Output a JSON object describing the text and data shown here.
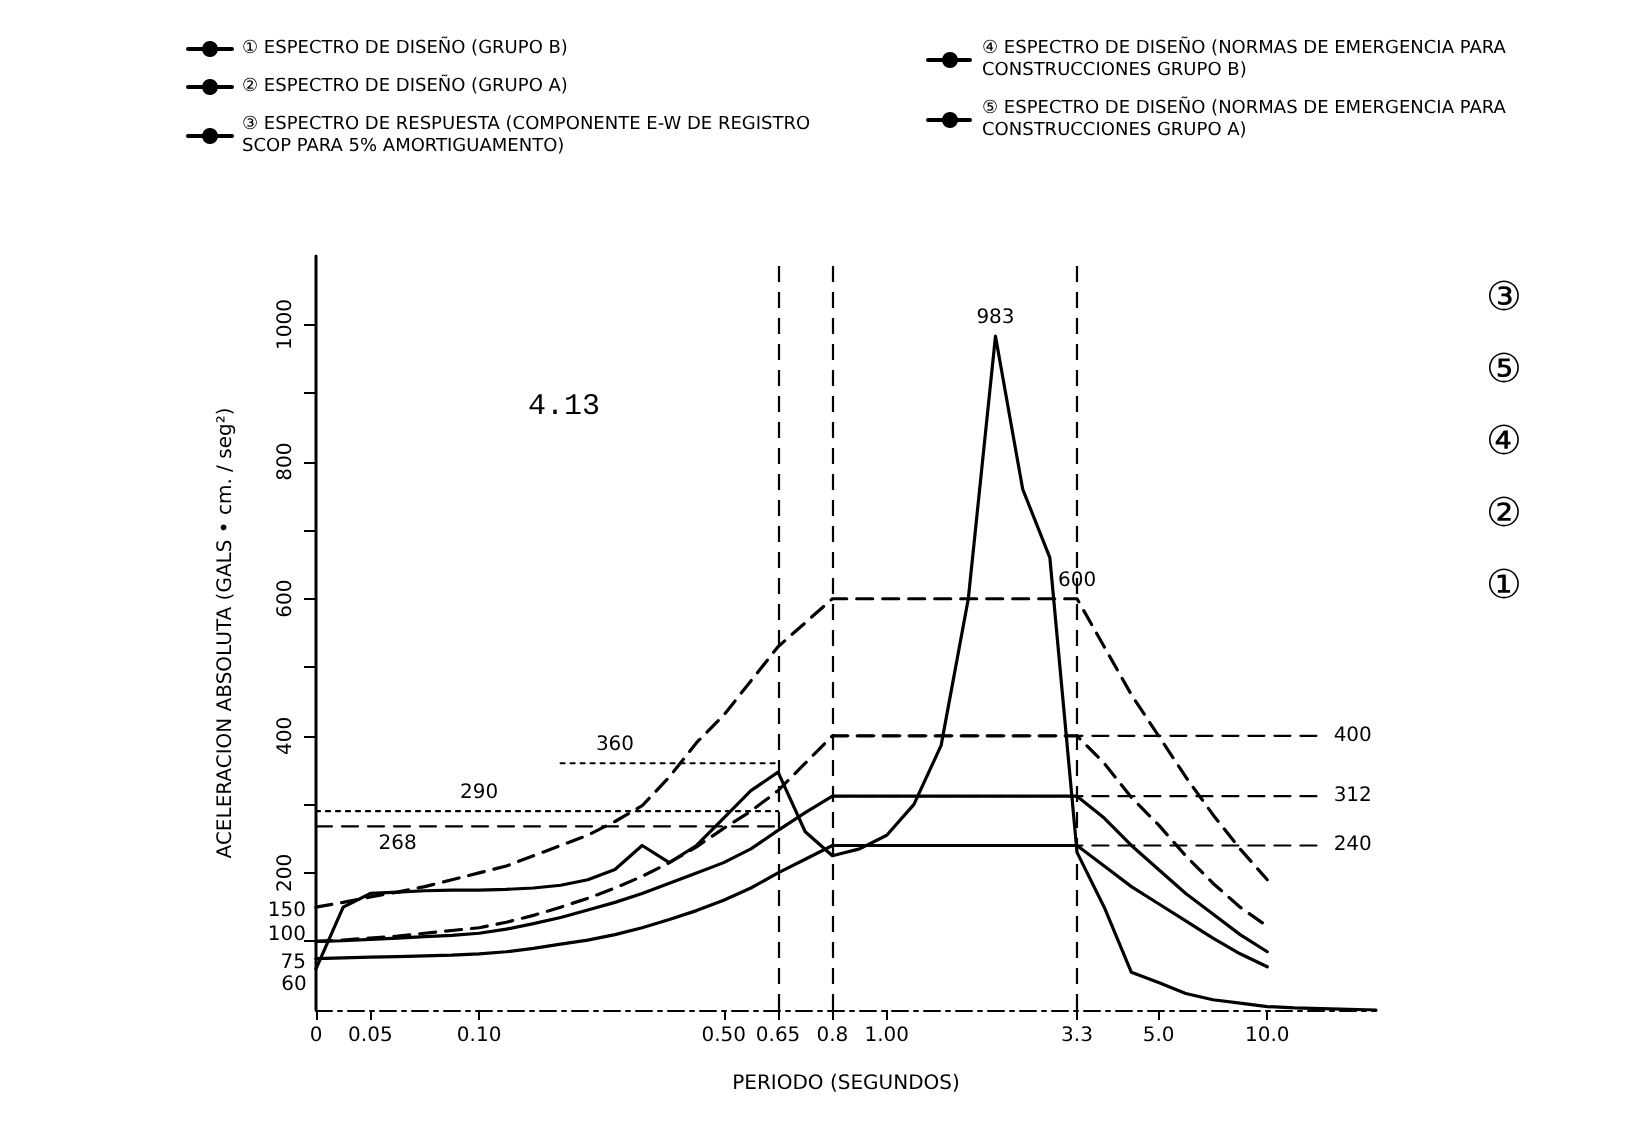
{
  "chart_data": {
    "type": "line",
    "xlabel": "PERIODO (SEGUNDOS)",
    "ylabel": "ACELERACION ABSOLUTA (GALS • cm. / seg²)",
    "categories": [
      "0",
      null,
      "0.05",
      null,
      null,
      null,
      "0.10",
      null,
      null,
      null,
      null,
      null,
      null,
      null,
      null,
      "0.50",
      null,
      "0.65",
      null,
      "0.8",
      null,
      "1.00",
      null,
      null,
      null,
      null,
      null,
      null,
      "3.3",
      null,
      null,
      "5.0",
      null,
      null,
      null,
      "10.0",
      null,
      null,
      null,
      null
    ],
    "ylim": [
      0,
      1100
    ],
    "yticks": [
      {
        "value": 100,
        "label": null
      },
      200,
      {
        "value": 300,
        "label": null
      },
      400,
      {
        "value": 500,
        "label": null
      },
      600,
      {
        "value": 700,
        "label": null
      },
      800,
      {
        "value": 900,
        "label": null
      },
      1000
    ],
    "grid": false,
    "legend": "top",
    "marker": "none",
    "ref_lines": [
      {
        "axis": "x",
        "value": "0.65",
        "line_style": "dashed",
        "color": "#000000"
      },
      {
        "axis": "x",
        "value": "0.8",
        "line_style": "dashed",
        "color": "#000000"
      },
      {
        "axis": "x",
        "value": "3.3",
        "line_style": "dashed",
        "color": "#000000"
      }
    ],
    "series": [
      {
        "name": "① ESPECTRO DE DISEÑO (GRUPO B)",
        "color": "#000000",
        "line_style": "solid",
        "values": [
          75,
          76,
          77,
          78,
          79,
          80,
          82,
          85,
          90,
          96,
          102,
          110,
          120,
          132,
          145,
          160,
          178,
          200,
          220,
          240,
          240,
          240,
          240,
          240,
          240,
          240,
          240,
          240,
          240,
          210,
          180,
          155,
          130,
          105,
          82,
          63,
          null,
          null,
          null,
          null
        ],
        "value_labels": [
          "75",
          null,
          null,
          null,
          null,
          null,
          null,
          null,
          null,
          null,
          null,
          null,
          null,
          null,
          null,
          null,
          null,
          null,
          null,
          null,
          null,
          null,
          null,
          null,
          null,
          null,
          null,
          null,
          null,
          null,
          null,
          null,
          null,
          null,
          null,
          null,
          null,
          null,
          null,
          null
        ]
      },
      {
        "name": "② ESPECTRO DE DISEÑO (GRUPO A)",
        "color": "#000000",
        "line_style": "solid",
        "values": [
          100,
          101,
          103,
          105,
          107,
          109,
          112,
          118,
          126,
          135,
          146,
          157,
          170,
          185,
          200,
          215,
          235,
          262,
          288,
          312,
          312,
          312,
          312,
          312,
          312,
          312,
          312,
          312,
          312,
          280,
          240,
          205,
          170,
          140,
          110,
          85,
          null,
          null,
          null,
          null
        ]
      },
      {
        "name": "③ ESPECTRO DE RESPUESTA (COMPONENTE E-W DE REGISTRO SCOP PARA 5% AMORTIGUAMENTO)",
        "color": "#000000",
        "line_style": "solid",
        "values": [
          60,
          150,
          170,
          172,
          174,
          175,
          175,
          176,
          178,
          182,
          190,
          205,
          240,
          215,
          240,
          280,
          320,
          347,
          260,
          225,
          235,
          255,
          300,
          386,
          600,
          983,
          760,
          660,
          230,
          150,
          55,
          40,
          24,
          15,
          10,
          5,
          3,
          2,
          1,
          0
        ],
        "value_labels": [
          "60",
          null,
          null,
          null,
          null,
          null,
          null,
          null,
          null,
          null,
          null,
          null,
          null,
          null,
          null,
          null,
          null,
          null,
          null,
          null,
          null,
          null,
          null,
          null,
          null,
          "983",
          null,
          null,
          null,
          null,
          null,
          null,
          null,
          null,
          null,
          null,
          null,
          null,
          null,
          null
        ]
      },
      {
        "name": "④ ESPECTRO DE DISEÑO (NORMAS DE EMERGENCIA PARA CONSTRUCCIONES GRUPO B)",
        "color": "#000000",
        "line_style": "dashed",
        "values": [
          100,
          102,
          105,
          108,
          112,
          116,
          120,
          128,
          138,
          150,
          163,
          178,
          195,
          215,
          238,
          265,
          290,
          320,
          360,
          400,
          400,
          400,
          400,
          400,
          400,
          400,
          400,
          400,
          400,
          360,
          310,
          270,
          225,
          185,
          150,
          122,
          null,
          null,
          null,
          null
        ],
        "value_labels": [
          "100",
          null,
          null,
          null,
          null,
          null,
          null,
          null,
          null,
          null,
          null,
          null,
          null,
          null,
          null,
          null,
          null,
          null,
          null,
          null,
          null,
          null,
          null,
          null,
          null,
          null,
          null,
          null,
          null,
          null,
          null,
          null,
          null,
          null,
          null,
          null,
          null,
          null,
          null,
          null
        ]
      },
      {
        "name": "⑤ ESPECTRO DE DISEÑO (NORMAS DE EMERGENCIA PARA CONSTRUCCIONES GRUPO A)",
        "color": "#000000",
        "line_style": "dashed",
        "values": [
          150,
          157,
          165,
          172,
          180,
          190,
          200,
          210,
          225,
          240,
          255,
          275,
          298,
          340,
          390,
          430,
          480,
          530,
          565,
          600,
          600,
          600,
          600,
          600,
          600,
          600,
          600,
          600,
          600,
          530,
          460,
          400,
          340,
          285,
          235,
          190,
          null,
          null,
          null,
          null
        ],
        "value_labels": [
          "150",
          null,
          null,
          null,
          null,
          null,
          null,
          null,
          null,
          null,
          null,
          null,
          null,
          null,
          null,
          null,
          null,
          null,
          null,
          null,
          null,
          null,
          null,
          null,
          null,
          null,
          null,
          null,
          "600",
          null,
          null,
          null,
          null,
          null,
          null,
          null,
          null,
          null,
          null,
          null
        ]
      },
      {
        "color": "#000000",
        "line_style": "dashed",
        "values": [
          268,
          268,
          268,
          268,
          268,
          268,
          268,
          268,
          268,
          268,
          268,
          268,
          268,
          268,
          268,
          268,
          268,
          268,
          null,
          null,
          null,
          null,
          null,
          null,
          null,
          null,
          null,
          null,
          null,
          null,
          null,
          null,
          null,
          null,
          null,
          null,
          null,
          null,
          null,
          null
        ],
        "value_labels": [
          null,
          null,
          null,
          "268",
          null,
          null,
          null,
          null,
          null,
          null,
          null,
          null,
          null,
          null,
          null,
          null,
          null,
          null,
          null,
          null,
          null,
          null,
          null,
          null,
          null,
          null,
          null,
          null,
          null,
          null,
          null,
          null,
          null,
          null,
          null,
          null,
          null,
          null,
          null,
          null
        ]
      },
      {
        "color": "#000000",
        "line_style": "dotted",
        "values": [
          290,
          290,
          290,
          290,
          290,
          290,
          290,
          290,
          290,
          290,
          290,
          290,
          290,
          290,
          290,
          290,
          290,
          290,
          null,
          null,
          null,
          null,
          null,
          null,
          null,
          null,
          null,
          null,
          null,
          null,
          null,
          null,
          null,
          null,
          null,
          null,
          null,
          null,
          null,
          null
        ],
        "value_labels": [
          null,
          null,
          null,
          null,
          null,
          null,
          "290",
          null,
          null,
          null,
          null,
          null,
          null,
          null,
          null,
          null,
          null,
          null,
          null,
          null,
          null,
          null,
          null,
          null,
          null,
          null,
          null,
          null,
          null,
          null,
          null,
          null,
          null,
          null,
          null,
          null,
          null,
          null,
          null,
          null
        ]
      },
      {
        "color": "#000000",
        "line_style": "dotted",
        "values": [
          null,
          null,
          null,
          null,
          null,
          null,
          null,
          null,
          null,
          360,
          360,
          360,
          360,
          360,
          360,
          360,
          360,
          360,
          null,
          null,
          null,
          null,
          null,
          null,
          null,
          null,
          null,
          null,
          null,
          null,
          null,
          null,
          null,
          null,
          null,
          null,
          null,
          null,
          null,
          null
        ],
        "value_labels": [
          null,
          null,
          null,
          null,
          null,
          null,
          null,
          null,
          null,
          null,
          null,
          "360",
          null,
          null,
          null,
          null,
          null,
          null,
          null,
          null,
          null,
          null,
          null,
          null,
          null,
          null,
          null,
          null,
          null,
          null,
          null,
          null,
          null,
          null,
          null,
          null,
          null,
          null,
          null,
          null
        ]
      },
      {
        "color": "#000000",
        "line_style": "dashed",
        "values": [
          null,
          null,
          null,
          null,
          null,
          null,
          null,
          null,
          null,
          null,
          null,
          null,
          null,
          null,
          null,
          null,
          null,
          null,
          null,
          400,
          400,
          400,
          400,
          400,
          400,
          400,
          400,
          400,
          400,
          400,
          400,
          400,
          400,
          400,
          400,
          400,
          400,
          400,
          null,
          null
        ],
        "value_labels": [
          null,
          null,
          null,
          null,
          null,
          null,
          null,
          null,
          null,
          null,
          null,
          null,
          null,
          null,
          null,
          null,
          null,
          null,
          null,
          null,
          null,
          null,
          null,
          null,
          null,
          null,
          null,
          null,
          null,
          null,
          null,
          null,
          null,
          null,
          null,
          null,
          null,
          "400",
          null,
          null
        ]
      },
      {
        "color": "#000000",
        "line_style": "dashed",
        "values": [
          null,
          null,
          null,
          null,
          null,
          null,
          null,
          null,
          null,
          null,
          null,
          null,
          null,
          null,
          null,
          null,
          null,
          null,
          null,
          312,
          312,
          312,
          312,
          312,
          312,
          312,
          312,
          312,
          312,
          312,
          312,
          312,
          312,
          312,
          312,
          312,
          312,
          312,
          null,
          null
        ],
        "value_labels": [
          null,
          null,
          null,
          null,
          null,
          null,
          null,
          null,
          null,
          null,
          null,
          null,
          null,
          null,
          null,
          null,
          null,
          null,
          null,
          null,
          null,
          null,
          null,
          null,
          null,
          null,
          null,
          null,
          null,
          null,
          null,
          null,
          null,
          null,
          null,
          null,
          null,
          "312",
          null,
          null
        ]
      },
      {
        "color": "#000000",
        "line_style": "dashed",
        "values": [
          null,
          null,
          null,
          null,
          null,
          null,
          null,
          null,
          null,
          null,
          null,
          null,
          null,
          null,
          null,
          null,
          null,
          null,
          null,
          240,
          240,
          240,
          240,
          240,
          240,
          240,
          240,
          240,
          240,
          240,
          240,
          240,
          240,
          240,
          240,
          240,
          240,
          240,
          null,
          null
        ],
        "value_labels": [
          null,
          null,
          null,
          null,
          null,
          null,
          null,
          null,
          null,
          null,
          null,
          null,
          null,
          null,
          null,
          null,
          null,
          null,
          null,
          null,
          null,
          null,
          null,
          null,
          null,
          null,
          null,
          null,
          null,
          null,
          null,
          null,
          null,
          null,
          null,
          null,
          null,
          "240",
          null,
          null
        ]
      }
    ],
    "annotations": [
      "4.13",
      "③",
      "⑤",
      "④",
      "②",
      "①"
    ]
  }
}
